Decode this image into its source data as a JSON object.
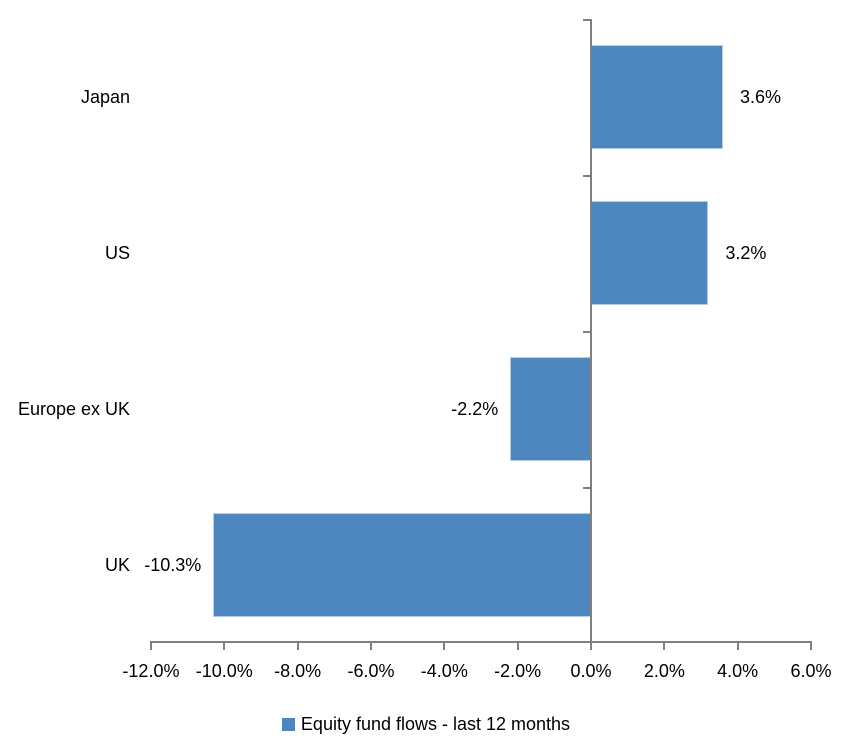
{
  "chart": {
    "legend": {
      "label": "Equity fund flows - last 12 months"
    },
    "colors": {
      "bar": "#4E87C0",
      "bar_border": "#B5CCE4",
      "axis": "#808080",
      "text": "#000000",
      "background": "#FFFFFF"
    }
  },
  "chart_data": {
    "type": "bar",
    "orientation": "horizontal",
    "title": "",
    "xlabel": "",
    "ylabel": "",
    "categories": [
      "Japan",
      "US",
      "Europe ex UK",
      "UK"
    ],
    "series": [
      {
        "name": "Equity fund flows - last 12 months",
        "values": [
          3.6,
          3.2,
          -2.2,
          -10.3
        ],
        "value_labels": [
          "3.6%",
          "3.2%",
          "-2.2%",
          "-10.3%"
        ]
      }
    ],
    "xlim": [
      -12,
      6
    ],
    "x_tick_step": 2,
    "x_ticks": [
      -12,
      -10,
      -8,
      -6,
      -4,
      -2,
      0,
      2,
      4,
      6
    ],
    "x_tick_labels": [
      "-12.0%",
      "-10.0%",
      "-8.0%",
      "-6.0%",
      "-4.0%",
      "-2.0%",
      "0.0%",
      "2.0%",
      "4.0%",
      "6.0%"
    ],
    "grid": false,
    "data_labels": "outside-end",
    "legend_position": "bottom"
  }
}
